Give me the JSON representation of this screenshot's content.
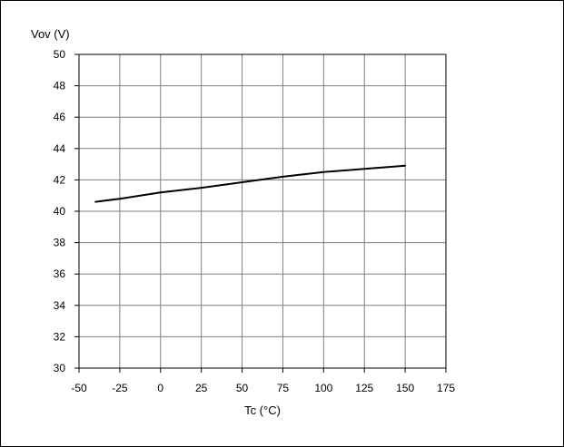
{
  "chart_data": {
    "type": "line",
    "title": "",
    "xlabel": "Tc (°C)",
    "ylabel": "Vov (V)",
    "xlim": [
      -50,
      175
    ],
    "ylim": [
      30,
      50
    ],
    "xticks": [
      -50,
      -25,
      0,
      25,
      50,
      75,
      100,
      125,
      150,
      175
    ],
    "yticks": [
      30,
      32,
      34,
      36,
      38,
      40,
      42,
      44,
      46,
      48,
      50
    ],
    "grid": true,
    "legend": "none",
    "line_color": "#000000",
    "grid_color": "#7f7f7f",
    "series": [
      {
        "x": [
          -40,
          -25,
          0,
          25,
          50,
          75,
          100,
          125,
          150
        ],
        "y": [
          40.6,
          40.8,
          41.2,
          41.5,
          41.85,
          42.2,
          42.5,
          42.7,
          42.9
        ]
      }
    ]
  }
}
